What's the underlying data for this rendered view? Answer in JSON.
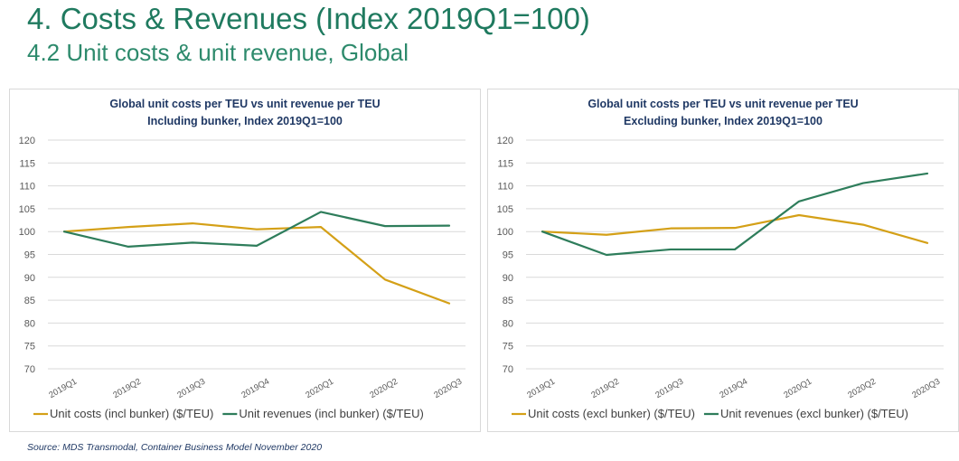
{
  "page": {
    "title": "4. Costs & Revenues (Index 2019Q1=100)",
    "subtitle": "4.2 Unit costs & unit revenue, Global",
    "source": "Source: MDS Transmodal, Container Business Model November 2020"
  },
  "colors": {
    "title": "#1f7a5f",
    "costs": "#d4a017",
    "revenues": "#2e7d5b",
    "grid": "#d9d9d9"
  },
  "chart_data": [
    {
      "type": "line",
      "title": [
        "Global unit costs per TEU vs unit revenue per TEU",
        "Including bunker, Index 2019Q1=100"
      ],
      "categories": [
        "2019Q1",
        "2019Q2",
        "2019Q3",
        "2019Q4",
        "2020Q1",
        "2020Q2",
        "2020Q3"
      ],
      "ylim": [
        70,
        120
      ],
      "yticks": [
        70,
        75,
        80,
        85,
        90,
        95,
        100,
        105,
        110,
        115,
        120
      ],
      "grid": true,
      "legend_position": "bottom",
      "series": [
        {
          "name": "Unit costs (incl bunker) ($/TEU)",
          "color": "#d4a017",
          "values": [
            100,
            101,
            101.8,
            100.5,
            101,
            89.5,
            84.3
          ]
        },
        {
          "name": "Unit revenues (incl bunker) ($/TEU)",
          "color": "#2e7d5b",
          "values": [
            100,
            96.7,
            97.6,
            96.9,
            104.3,
            101.2,
            101.3
          ]
        }
      ]
    },
    {
      "type": "line",
      "title": [
        "Global unit costs per TEU vs unit revenue per TEU",
        "Excluding bunker, Index 2019Q1=100"
      ],
      "categories": [
        "2019Q1",
        "2019Q2",
        "2019Q3",
        "2019Q4",
        "2020Q1",
        "2020Q2",
        "2020Q3"
      ],
      "ylim": [
        70,
        120
      ],
      "yticks": [
        70,
        75,
        80,
        85,
        90,
        95,
        100,
        105,
        110,
        115,
        120
      ],
      "grid": true,
      "legend_position": "bottom",
      "series": [
        {
          "name": "Unit costs (excl bunker) ($/TEU)",
          "color": "#d4a017",
          "values": [
            100,
            99.3,
            100.7,
            100.8,
            103.6,
            101.5,
            97.5
          ]
        },
        {
          "name": "Unit revenues (excl bunker) ($/TEU)",
          "color": "#2e7d5b",
          "values": [
            100,
            94.9,
            96.1,
            96.1,
            106.6,
            110.6,
            112.7
          ]
        }
      ]
    }
  ]
}
